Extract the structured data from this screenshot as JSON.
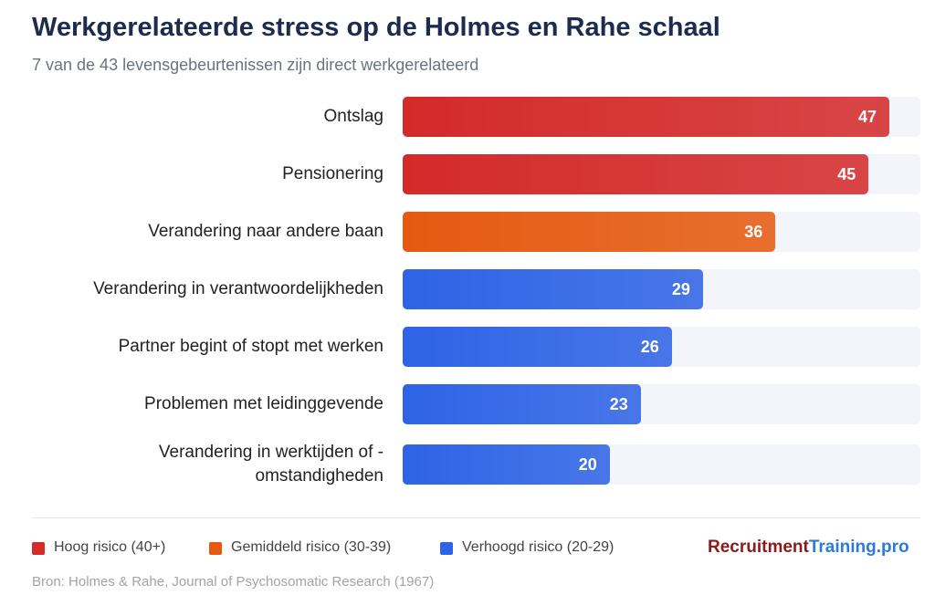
{
  "chart_data": {
    "type": "bar",
    "orientation": "horizontal",
    "title": "Werkgerelateerde stress op de Holmes en Rahe schaal",
    "subtitle": "7 van de 43 levensgebeurtenissen zijn direct werkgerelateerd",
    "categories": [
      "Ontslag",
      "Pensionering",
      "Verandering naar andere baan",
      "Verandering in verantwoordelijkheden",
      "Partner begint of stopt met werken",
      "Problemen met leidinggevende",
      "Verandering in werktijden of - omstandigheden"
    ],
    "values": [
      47,
      45,
      36,
      29,
      26,
      23,
      20
    ],
    "colors": [
      "#d42a2a",
      "#d42a2a",
      "#e55a10",
      "#2e63e6",
      "#2e63e6",
      "#2e63e6",
      "#2e63e6"
    ],
    "xlim": [
      0,
      50
    ],
    "legend": [
      {
        "name": "Hoog risico (40+)",
        "color": "#d42a2a"
      },
      {
        "name": "Gemiddeld risico (30-39)",
        "color": "#e55a10"
      },
      {
        "name": "Verhoogd risico (20-29)",
        "color": "#2e63e6"
      }
    ],
    "logo": {
      "part1": "Recruitment",
      "part2": "Training.pro"
    },
    "source": "Bron: Holmes & Rahe, Journal of Psychosomatic Research (1967)"
  }
}
